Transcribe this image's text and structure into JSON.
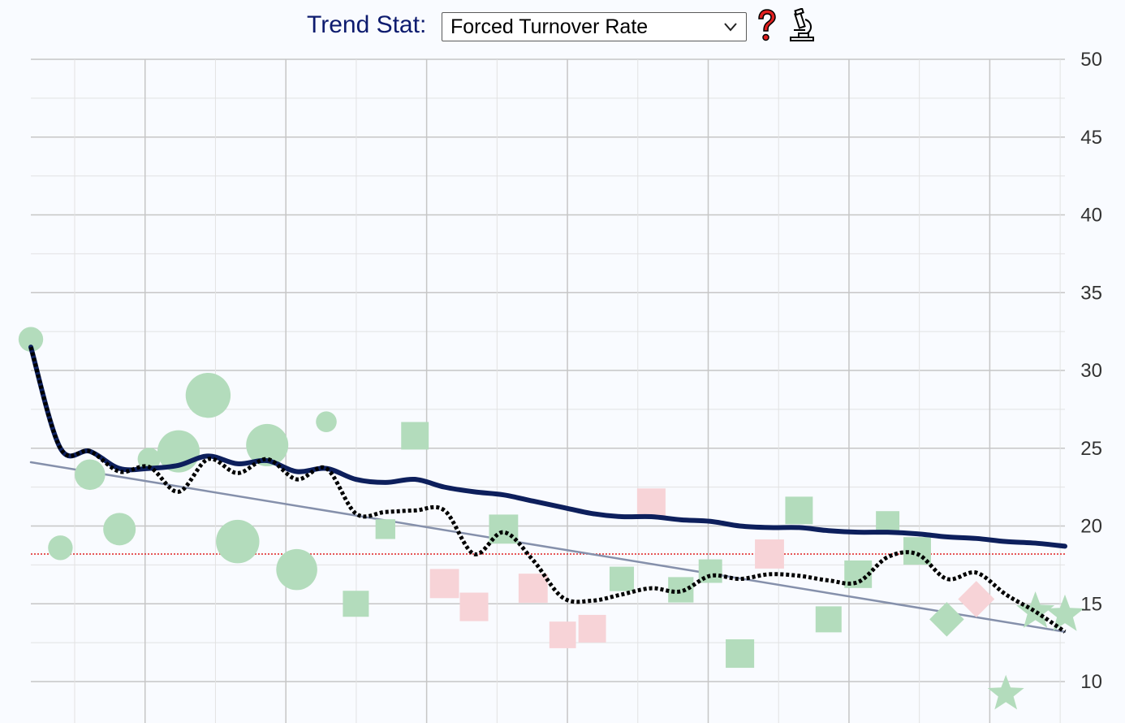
{
  "header": {
    "label": "Trend Stat:",
    "select_value": "Forced Turnover Rate",
    "help_icon": "question-mark-icon",
    "microscope_icon": "microscope-icon",
    "colors": {
      "label": "#0d1b6e",
      "help": "#e02020"
    }
  },
  "chart_data": {
    "type": "scatter",
    "title": "",
    "xlabel": "",
    "ylabel": "",
    "y_axis_side": "right",
    "ylim": [
      10,
      50
    ],
    "xlim": [
      0,
      35
    ],
    "yticks": [
      "50",
      "45",
      "40",
      "35",
      "30",
      "25",
      "20",
      "15",
      "10"
    ],
    "grid": true,
    "reference_line": {
      "y": 18.2,
      "color": "#e02020",
      "style": "dotted"
    },
    "points": [
      {
        "x": 0,
        "y": 32.0,
        "shape": "circle",
        "color": "green",
        "size": 0.3
      },
      {
        "x": 1,
        "y": 18.6,
        "shape": "circle",
        "color": "green",
        "size": 0.3
      },
      {
        "x": 2,
        "y": 23.3,
        "shape": "circle",
        "color": "green",
        "size": 0.45
      },
      {
        "x": 3,
        "y": 19.8,
        "shape": "circle",
        "color": "green",
        "size": 0.5
      },
      {
        "x": 4,
        "y": 24.3,
        "shape": "circle",
        "color": "green",
        "size": 0.25
      },
      {
        "x": 5,
        "y": 24.8,
        "shape": "circle",
        "color": "green",
        "size": 0.75
      },
      {
        "x": 6,
        "y": 28.4,
        "shape": "circle",
        "color": "green",
        "size": 0.82
      },
      {
        "x": 7,
        "y": 19.0,
        "shape": "circle",
        "color": "green",
        "size": 0.78
      },
      {
        "x": 8,
        "y": 25.2,
        "shape": "circle",
        "color": "green",
        "size": 0.75
      },
      {
        "x": 9,
        "y": 17.2,
        "shape": "circle",
        "color": "green",
        "size": 0.72
      },
      {
        "x": 10,
        "y": 26.7,
        "shape": "circle",
        "color": "green",
        "size": 0.2
      },
      {
        "x": 11,
        "y": 15.0,
        "shape": "square",
        "color": "green",
        "size": 0.5
      },
      {
        "x": 12,
        "y": 19.8,
        "shape": "square",
        "color": "green",
        "size": 0.3
      },
      {
        "x": 13,
        "y": 25.8,
        "shape": "square",
        "color": "green",
        "size": 0.55
      },
      {
        "x": 14,
        "y": 16.3,
        "shape": "square",
        "color": "pink",
        "size": 0.6
      },
      {
        "x": 15,
        "y": 14.8,
        "shape": "square",
        "color": "pink",
        "size": 0.58
      },
      {
        "x": 16,
        "y": 19.8,
        "shape": "square",
        "color": "green",
        "size": 0.6
      },
      {
        "x": 17,
        "y": 16.0,
        "shape": "square",
        "color": "pink",
        "size": 0.6
      },
      {
        "x": 18,
        "y": 13.0,
        "shape": "square",
        "color": "pink",
        "size": 0.52
      },
      {
        "x": 19,
        "y": 13.4,
        "shape": "square",
        "color": "pink",
        "size": 0.55
      },
      {
        "x": 20,
        "y": 16.6,
        "shape": "square",
        "color": "green",
        "size": 0.45
      },
      {
        "x": 21,
        "y": 21.5,
        "shape": "square",
        "color": "pink",
        "size": 0.58
      },
      {
        "x": 22,
        "y": 15.9,
        "shape": "square",
        "color": "green",
        "size": 0.48
      },
      {
        "x": 23,
        "y": 17.1,
        "shape": "square",
        "color": "green",
        "size": 0.42
      },
      {
        "x": 24,
        "y": 11.8,
        "shape": "square",
        "color": "green",
        "size": 0.58
      },
      {
        "x": 25,
        "y": 18.2,
        "shape": "square",
        "color": "pink",
        "size": 0.6
      },
      {
        "x": 26,
        "y": 21.0,
        "shape": "square",
        "color": "green",
        "size": 0.55
      },
      {
        "x": 27,
        "y": 14.0,
        "shape": "square",
        "color": "green",
        "size": 0.5
      },
      {
        "x": 28,
        "y": 16.9,
        "shape": "square",
        "color": "green",
        "size": 0.55
      },
      {
        "x": 29,
        "y": 20.2,
        "shape": "square",
        "color": "green",
        "size": 0.42
      },
      {
        "x": 30,
        "y": 18.4,
        "shape": "square",
        "color": "green",
        "size": 0.55
      },
      {
        "x": 31,
        "y": 14.0,
        "shape": "diamond",
        "color": "green",
        "size": 0.6
      },
      {
        "x": 32,
        "y": 15.3,
        "shape": "diamond",
        "color": "pink",
        "size": 0.65
      },
      {
        "x": 33,
        "y": 9.2,
        "shape": "star",
        "color": "green",
        "size": 0.65
      },
      {
        "x": 34,
        "y": 14.5,
        "shape": "star",
        "color": "green",
        "size": 0.7
      },
      {
        "x": 35,
        "y": 14.3,
        "shape": "star",
        "color": "green",
        "size": 0.7
      }
    ],
    "series": [
      {
        "kind": "cumulative-average",
        "style": "solid",
        "color": "#0d1f5c",
        "points": [
          [
            0,
            31.5
          ],
          [
            1,
            25.0
          ],
          [
            2,
            24.8
          ],
          [
            3,
            23.7
          ],
          [
            4,
            23.7
          ],
          [
            5,
            23.9
          ],
          [
            6,
            24.5
          ],
          [
            7,
            24.0
          ],
          [
            8,
            24.2
          ],
          [
            9,
            23.5
          ],
          [
            10,
            23.7
          ],
          [
            11,
            23.0
          ],
          [
            12,
            22.8
          ],
          [
            13,
            23.0
          ],
          [
            14,
            22.5
          ],
          [
            15,
            22.2
          ],
          [
            16,
            22.0
          ],
          [
            17,
            21.6
          ],
          [
            18,
            21.2
          ],
          [
            19,
            20.8
          ],
          [
            20,
            20.6
          ],
          [
            21,
            20.6
          ],
          [
            22,
            20.4
          ],
          [
            23,
            20.3
          ],
          [
            24,
            20.0
          ],
          [
            25,
            19.9
          ],
          [
            26,
            19.9
          ],
          [
            27,
            19.7
          ],
          [
            28,
            19.6
          ],
          [
            29,
            19.6
          ],
          [
            30,
            19.5
          ],
          [
            31,
            19.3
          ],
          [
            32,
            19.2
          ],
          [
            33,
            19.0
          ],
          [
            34,
            18.9
          ],
          [
            35,
            18.7
          ]
        ]
      },
      {
        "kind": "rolling-average",
        "style": "dotted",
        "color": "#000000",
        "points": [
          [
            0,
            31.5
          ],
          [
            1,
            25.0
          ],
          [
            2,
            24.8
          ],
          [
            3,
            23.5
          ],
          [
            4,
            23.8
          ],
          [
            5,
            22.2
          ],
          [
            6,
            24.3
          ],
          [
            7,
            23.4
          ],
          [
            8,
            24.3
          ],
          [
            9,
            23.0
          ],
          [
            10,
            23.7
          ],
          [
            11,
            20.8
          ],
          [
            12,
            20.9
          ],
          [
            13,
            21.0
          ],
          [
            14,
            21.0
          ],
          [
            15,
            18.2
          ],
          [
            16,
            19.6
          ],
          [
            17,
            17.8
          ],
          [
            18,
            15.4
          ],
          [
            19,
            15.2
          ],
          [
            20,
            15.6
          ],
          [
            21,
            16.0
          ],
          [
            22,
            15.8
          ],
          [
            23,
            16.8
          ],
          [
            24,
            16.6
          ],
          [
            25,
            16.9
          ],
          [
            26,
            16.8
          ],
          [
            27,
            16.5
          ],
          [
            28,
            16.4
          ],
          [
            29,
            18.0
          ],
          [
            30,
            18.2
          ],
          [
            31,
            16.6
          ],
          [
            32,
            17.0
          ],
          [
            33,
            15.6
          ],
          [
            34,
            14.5
          ],
          [
            35,
            13.2
          ]
        ]
      },
      {
        "kind": "linear-trend",
        "style": "solid",
        "color": "#8590ab",
        "points": [
          [
            0,
            24.1
          ],
          [
            35,
            13.2
          ]
        ]
      }
    ]
  }
}
